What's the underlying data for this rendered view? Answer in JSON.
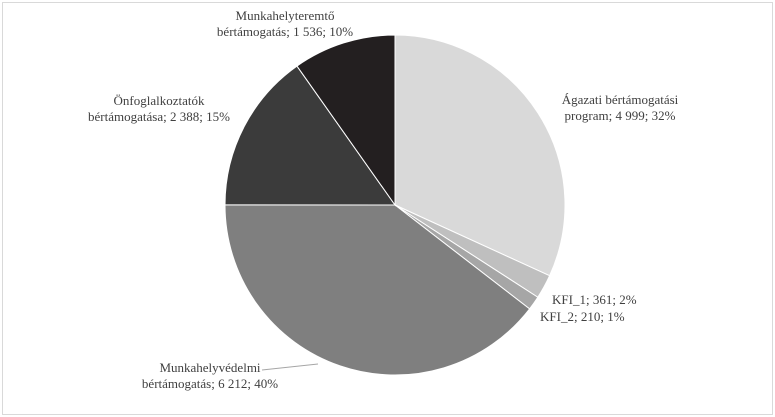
{
  "chart_data": {
    "type": "pie",
    "categories": [
      "Ágazati bértámogatási program",
      "KFI_1",
      "KFI_2",
      "Munkahelyvédelmi bértámogatás",
      "Önfoglalkoztatók bértámogatása",
      "Munkahelyteremtő bértámogatás"
    ],
    "values": [
      4999,
      361,
      210,
      6212,
      2388,
      1536
    ],
    "value_labels": [
      "4 999",
      "361",
      "210",
      "6 212",
      "2 388",
      "1 536"
    ],
    "percentages": [
      32,
      2,
      1,
      40,
      15,
      10
    ],
    "percentage_labels": [
      "32%",
      "2%",
      "1%",
      "40%",
      "15%",
      "10%"
    ],
    "label_separator": "; ",
    "colors": [
      "#d9d9d9",
      "#bfbfbf",
      "#a6a6a6",
      "#7f7f7f",
      "#3b3b3b",
      "#231f20"
    ]
  }
}
